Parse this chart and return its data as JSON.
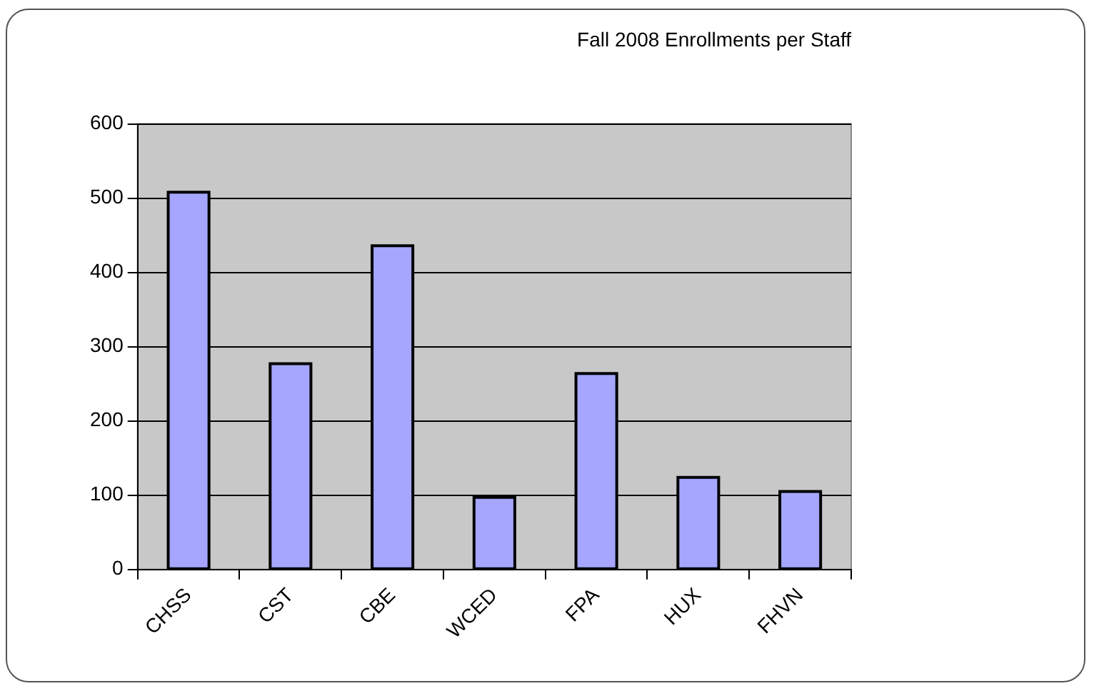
{
  "chart_data": {
    "type": "bar",
    "title": "Fall 2008 Enrollments per Staff",
    "categories": [
      "CHSS",
      "CST",
      "CBE",
      "WCED",
      "FPA",
      "HUX",
      "FHVN"
    ],
    "values": [
      508,
      277,
      436,
      97,
      264,
      124,
      105
    ],
    "color": "#a6a6ff",
    "ylim": [
      0,
      600
    ],
    "yticks": [
      0,
      100,
      200,
      300,
      400,
      500,
      600
    ],
    "grid": "y",
    "legend": false
  }
}
